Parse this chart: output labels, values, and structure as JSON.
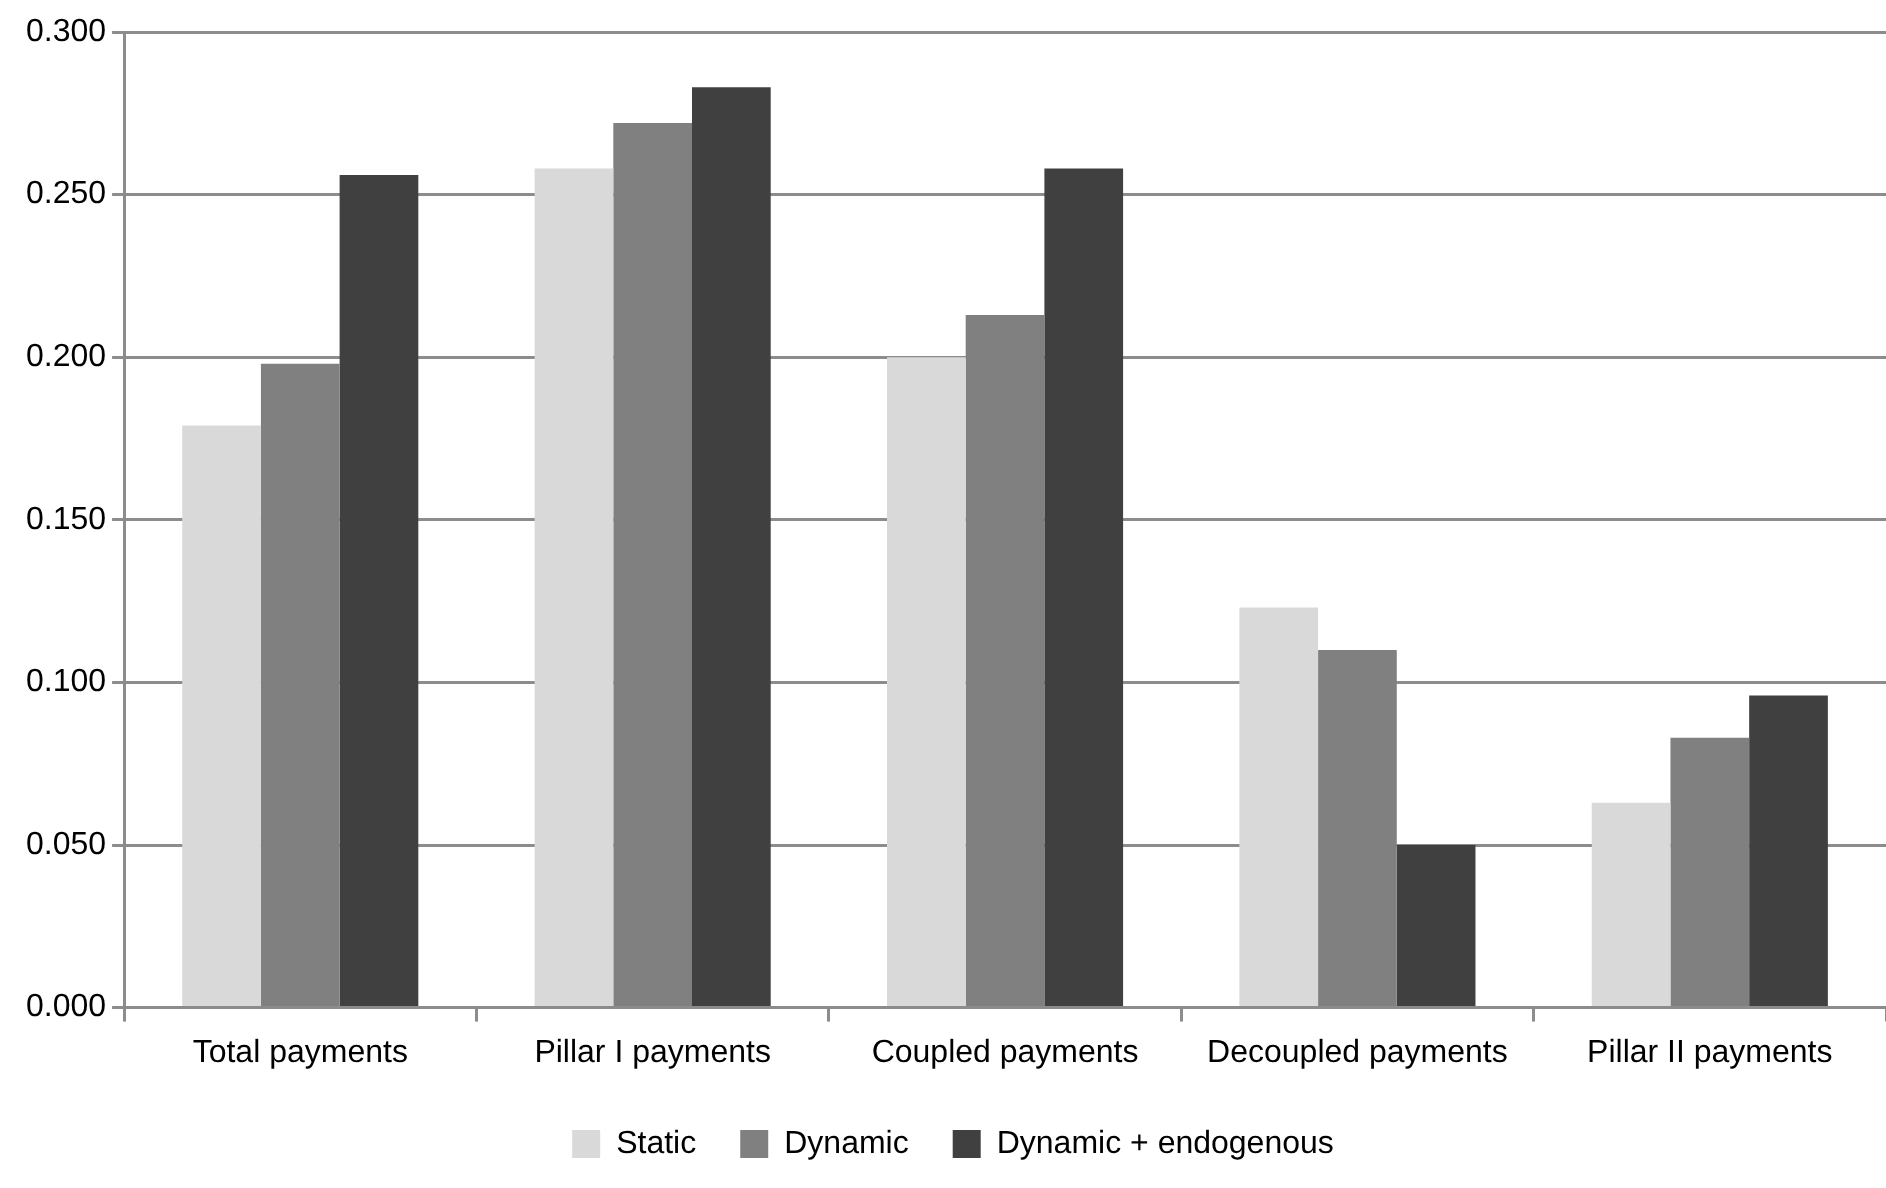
{
  "chart_data": {
    "type": "bar",
    "categories": [
      "Total payments",
      "Pillar I payments",
      "Coupled payments",
      "Decoupled payments",
      "Pillar II payments"
    ],
    "series": [
      {
        "name": "Static",
        "color": "#d9d9d9",
        "values": [
          0.179,
          0.258,
          0.2,
          0.123,
          0.063
        ]
      },
      {
        "name": "Dynamic",
        "color": "#808080",
        "values": [
          0.198,
          0.272,
          0.213,
          0.11,
          0.083
        ]
      },
      {
        "name": "Dynamic + endogenous",
        "color": "#404040",
        "values": [
          0.256,
          0.283,
          0.258,
          0.05,
          0.096
        ]
      }
    ],
    "ylim": [
      0,
      0.3
    ],
    "yticks": [
      {
        "value": 0,
        "label": "0.000"
      },
      {
        "value": 0.05,
        "label": "0.050"
      },
      {
        "value": 0.1,
        "label": "0.100"
      },
      {
        "value": 0.15,
        "label": "0.150"
      },
      {
        "value": 0.2,
        "label": "0.200"
      },
      {
        "value": 0.25,
        "label": "0.250"
      },
      {
        "value": 0.3,
        "label": "0.300"
      }
    ],
    "grid": "y",
    "legend": "bottom"
  }
}
